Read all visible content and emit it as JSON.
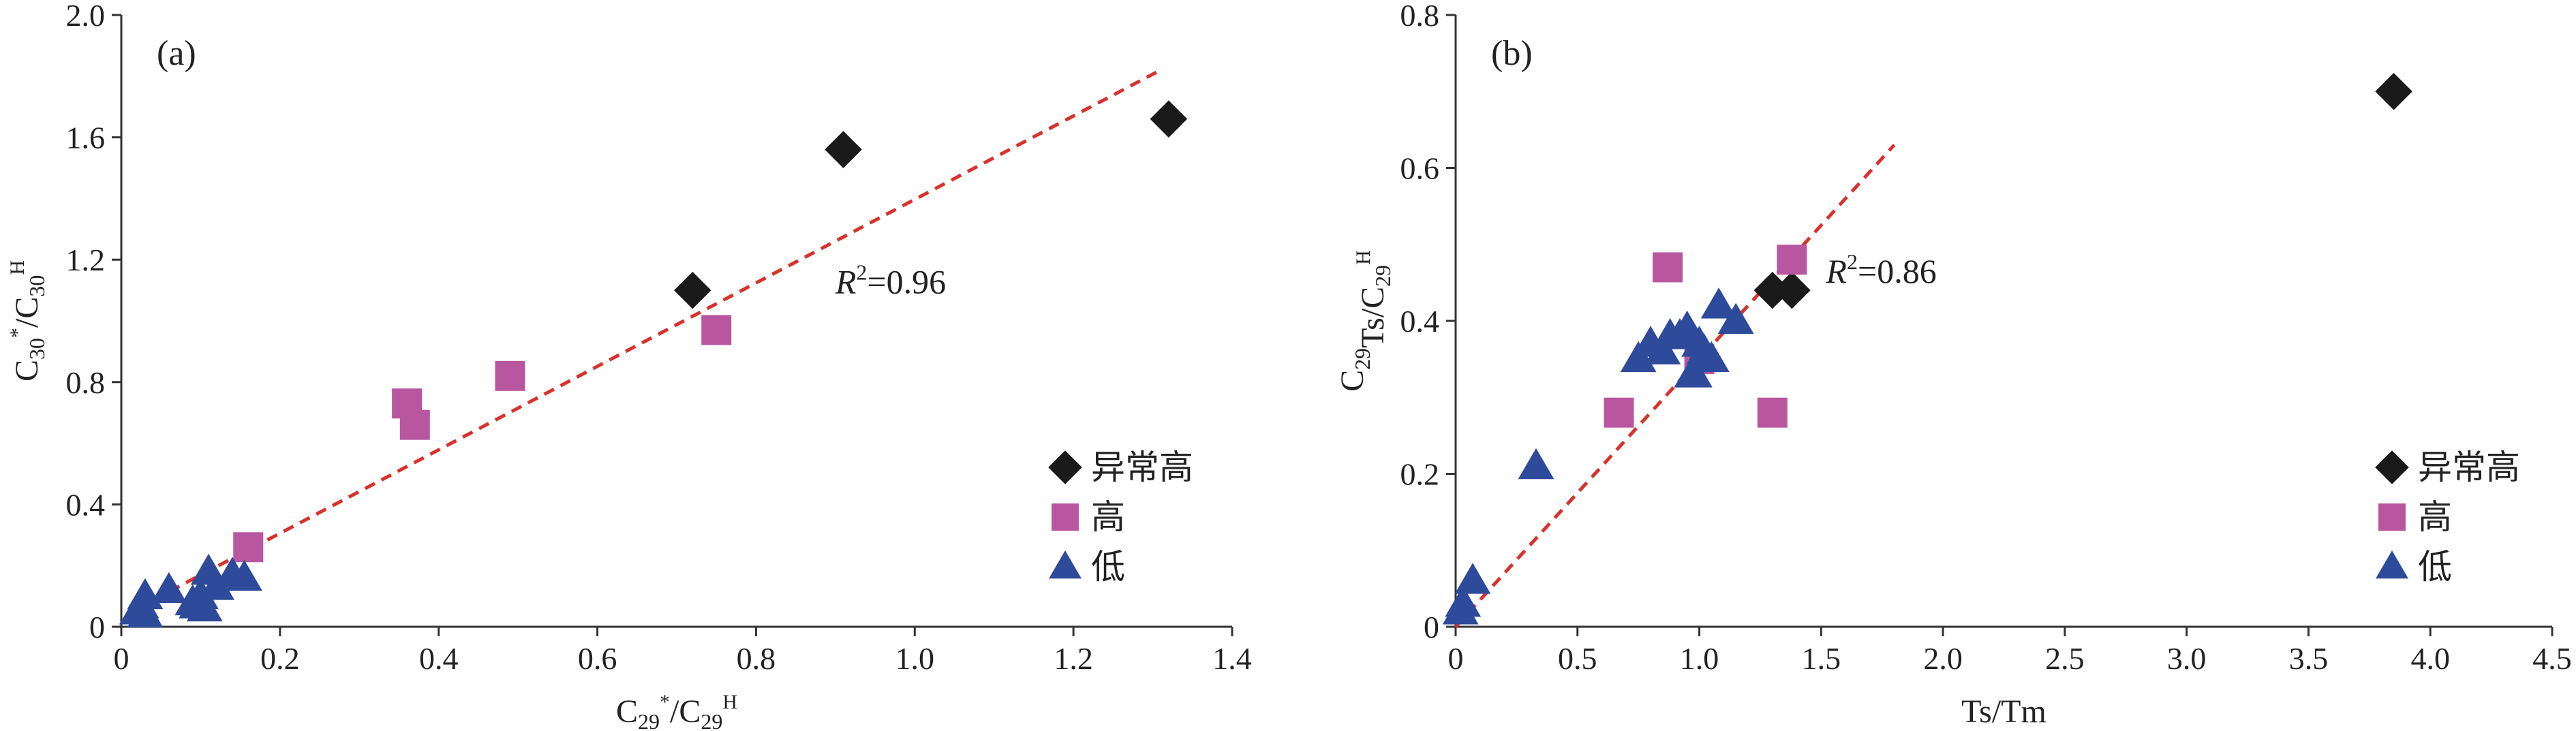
{
  "colors": {
    "abnormal": "#1a1a1a",
    "high": "#b8579f",
    "low": "#2e4a9a",
    "trend": "#d9312b",
    "axis": "#333333"
  },
  "chart_data": [
    {
      "type": "scatter",
      "panel_label": "(a)",
      "xlabel": {
        "parts": [
          "C",
          "29",
          "*",
          "/C",
          "29",
          "H"
        ]
      },
      "ylabel": {
        "parts": [
          "C",
          "30",
          "*",
          "/C",
          "30",
          "H"
        ]
      },
      "xlim": [
        0,
        1.4
      ],
      "ylim": [
        0,
        2.0
      ],
      "xticks": [
        0,
        0.2,
        0.4,
        0.6,
        0.8,
        1.0,
        1.2,
        1.4
      ],
      "xtick_labels": [
        "0",
        "0.2",
        "0.4",
        "0.6",
        "0.8",
        "1.0",
        "1.2",
        "1.4"
      ],
      "yticks": [
        0,
        0.4,
        0.8,
        1.2,
        1.6,
        2.0
      ],
      "ytick_labels": [
        "0",
        "0.4",
        "0.8",
        "1.2",
        "1.6",
        "2.0"
      ],
      "r2": {
        "italic": "R",
        "sup": "2",
        "value": "=0.96"
      },
      "r2_anchor": [
        0.9,
        1.09
      ],
      "trendline": {
        "x": [
          0.02,
          1.31
        ],
        "y": [
          0.06,
          1.82
        ]
      },
      "legend": [
        {
          "label": "异常高",
          "marker": "diamond",
          "color_key": "abnormal"
        },
        {
          "label": "高",
          "marker": "square",
          "color_key": "high"
        },
        {
          "label": "低",
          "marker": "triangle",
          "color_key": "low"
        }
      ],
      "series": [
        {
          "name": "异常高",
          "marker": "diamond",
          "color_key": "abnormal",
          "x": [
            0.72,
            0.91,
            1.32
          ],
          "y": [
            1.1,
            1.56,
            1.66
          ]
        },
        {
          "name": "高",
          "marker": "square",
          "color_key": "high",
          "x": [
            0.36,
            0.37,
            0.49,
            0.75,
            0.16
          ],
          "y": [
            0.73,
            0.66,
            0.82,
            0.97,
            0.26
          ]
        },
        {
          "name": "低",
          "marker": "triangle",
          "color_key": "low",
          "x": [
            0.02,
            0.025,
            0.03,
            0.06,
            0.09,
            0.1,
            0.095,
            0.11,
            0.12,
            0.14,
            0.155,
            0.105,
            0.03
          ],
          "y": [
            0.05,
            0.07,
            0.1,
            0.12,
            0.08,
            0.1,
            0.07,
            0.18,
            0.13,
            0.17,
            0.16,
            0.06,
            0.04
          ]
        }
      ]
    },
    {
      "type": "scatter",
      "panel_label": "(b)",
      "xlabel": {
        "parts": [
          "Ts/Tm"
        ]
      },
      "ylabel": {
        "parts": [
          "C",
          "29",
          "",
          "Ts/C",
          "29",
          "H"
        ]
      },
      "xlim": [
        0,
        4.5
      ],
      "ylim": [
        0,
        0.8
      ],
      "xticks": [
        0,
        0.5,
        1.0,
        1.5,
        2.0,
        2.5,
        3.0,
        3.5,
        4.0,
        4.5
      ],
      "xtick_labels": [
        "0",
        "0.5",
        "1.0",
        "1.5",
        "2.0",
        "2.5",
        "3.0",
        "3.5",
        "4.0",
        "4.5"
      ],
      "yticks": [
        0,
        0.2,
        0.4,
        0.6,
        0.8
      ],
      "ytick_labels": [
        "0",
        "0.2",
        "0.4",
        "0.6",
        "0.8"
      ],
      "r2": {
        "italic": "R",
        "sup": "2",
        "value": "=0.86"
      },
      "r2_anchor": [
        1.52,
        0.45
      ],
      "trendline": {
        "x": [
          0.0,
          1.8
        ],
        "y": [
          0.0,
          0.63
        ]
      },
      "legend": [
        {
          "label": "异常高",
          "marker": "diamond",
          "color_key": "abnormal"
        },
        {
          "label": "高",
          "marker": "square",
          "color_key": "high"
        },
        {
          "label": "低",
          "marker": "triangle",
          "color_key": "low"
        }
      ],
      "series": [
        {
          "name": "异常高",
          "marker": "diamond",
          "color_key": "abnormal",
          "x": [
            1.3,
            1.38,
            3.85
          ],
          "y": [
            0.44,
            0.44,
            0.7
          ]
        },
        {
          "name": "高",
          "marker": "square",
          "color_key": "high",
          "x": [
            0.67,
            0.87,
            1.0,
            1.3,
            1.38
          ],
          "y": [
            0.28,
            0.47,
            0.35,
            0.28,
            0.48
          ]
        },
        {
          "name": "低",
          "marker": "triangle",
          "color_key": "low",
          "x": [
            0.02,
            0.03,
            0.07,
            0.33,
            0.75,
            0.8,
            0.85,
            0.88,
            0.92,
            0.95,
            0.97,
            1.0,
            1.02,
            1.05,
            1.08,
            1.15,
            0.98
          ],
          "y": [
            0.02,
            0.03,
            0.06,
            0.21,
            0.35,
            0.37,
            0.36,
            0.38,
            0.38,
            0.39,
            0.33,
            0.37,
            0.36,
            0.35,
            0.42,
            0.4,
            0.33
          ]
        }
      ]
    }
  ]
}
